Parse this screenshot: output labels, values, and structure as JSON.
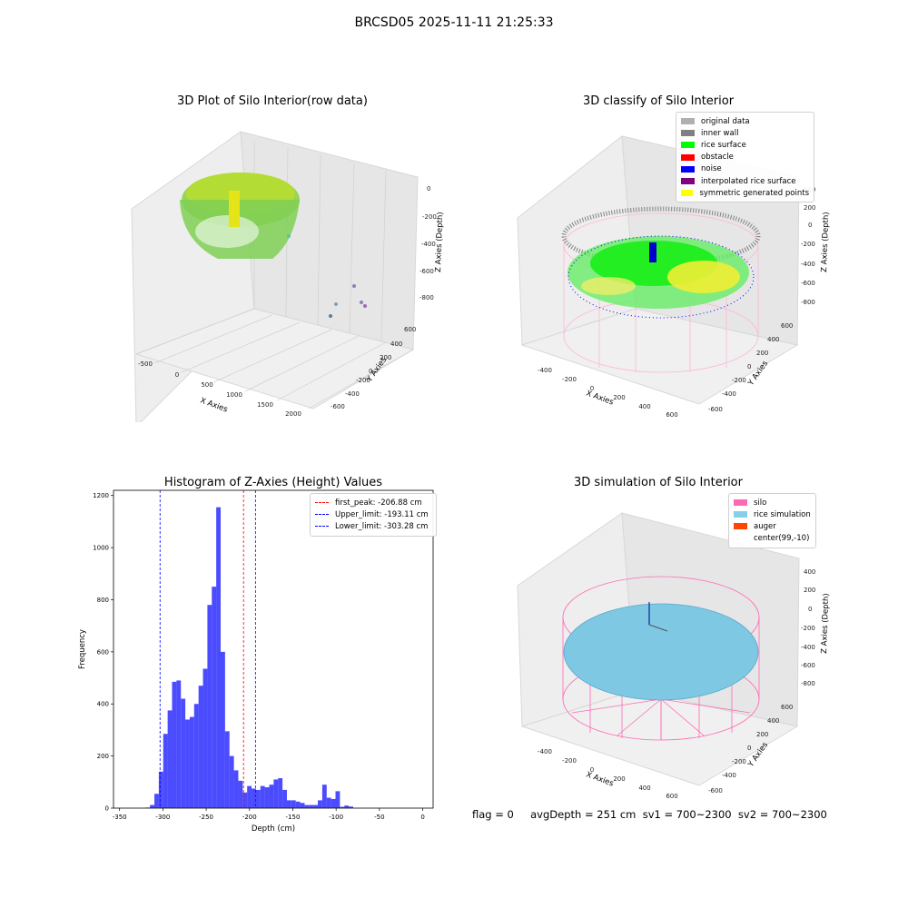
{
  "figure": {
    "suptitle": "BRCSD05 2025-11-11 21:25:33",
    "footer": "flag = 0     avgDepth = 251 cm  sv1 = 700~2300  sv2 = 700~2300"
  },
  "panels": [
    {
      "title": "3D Plot of Silo Interior(row data)",
      "xlabel": "X Axies",
      "ylabel": "Y Axies",
      "zlabel": "Z Axies (Depth)",
      "xticks": [
        "-500",
        "0",
        "500",
        "1000",
        "1500",
        "2000"
      ],
      "yticks": [
        "600",
        "400",
        "200",
        "0",
        "-200",
        "-400",
        "-600"
      ],
      "zticks": [
        "0",
        "-200",
        "-400",
        "-600",
        "-800"
      ]
    },
    {
      "title": "3D classify of Silo Interior",
      "xlabel": "X Axies",
      "ylabel": "Y Axies",
      "zlabel": "Z Axies (Depth)",
      "xticks": [
        "-400",
        "-200",
        "0",
        "200",
        "400",
        "600"
      ],
      "yticks": [
        "600",
        "400",
        "200",
        "0",
        "-200",
        "-400",
        "-600"
      ],
      "zticks": [
        "400",
        "200",
        "0",
        "-200",
        "-400",
        "-600",
        "-800"
      ],
      "legend": [
        {
          "label": "original data",
          "color": "#b0b0b0"
        },
        {
          "label": "inner wall",
          "color": "#808080"
        },
        {
          "label": "rice surface",
          "color": "#00ff00"
        },
        {
          "label": "obstacle",
          "color": "#ff0000"
        },
        {
          "label": "noise",
          "color": "#0000ff"
        },
        {
          "label": "interpolated rice surface",
          "color": "#800080"
        },
        {
          "label": "symmetric generated points",
          "color": "#ffff00"
        }
      ]
    },
    {
      "title": "3D simulation of Silo Interior",
      "xlabel": "X Axies",
      "ylabel": "Y Axies",
      "zlabel": "Z Axies (Depth)",
      "xticks": [
        "-400",
        "-200",
        "0",
        "200",
        "400",
        "600"
      ],
      "yticks": [
        "600",
        "400",
        "200",
        "0",
        "-200",
        "-400",
        "-600"
      ],
      "zticks": [
        "400",
        "200",
        "0",
        "-200",
        "-400",
        "-600",
        "-800"
      ],
      "legend": [
        {
          "label": "silo",
          "color": "#ff69b4"
        },
        {
          "label": "rice simulation",
          "color": "#87ceeb"
        },
        {
          "label": "auger",
          "color": "#ff4500"
        },
        {
          "label": "center(99,-10)",
          "color": "#ffffff"
        }
      ]
    }
  ],
  "chart_data": {
    "type": "bar",
    "title": "Histogram of Z-Axies (Height) Values",
    "xlabel": "Depth (cm)",
    "ylabel": "Frequency",
    "xlim": [
      -357,
      12
    ],
    "ylim": [
      0,
      1220
    ],
    "xticks": [
      -350,
      -300,
      -250,
      -200,
      -150,
      -100,
      -50,
      0
    ],
    "yticks": [
      0,
      200,
      400,
      600,
      800,
      1000,
      1200
    ],
    "bar_color": "#0000ff",
    "bin_width": 5.1,
    "bin_start": -320.0,
    "values": [
      2,
      12,
      55,
      140,
      285,
      375,
      485,
      490,
      420,
      340,
      350,
      400,
      470,
      535,
      780,
      850,
      1155,
      600,
      295,
      200,
      145,
      105,
      60,
      85,
      75,
      70,
      85,
      80,
      90,
      110,
      115,
      70,
      30,
      30,
      25,
      20,
      12,
      12,
      12,
      30,
      90,
      40,
      35,
      65,
      5,
      10,
      6
    ],
    "vlines": [
      {
        "x": -206.88,
        "color": "#ff0000",
        "label": "first_peak: -206.88 cm"
      },
      {
        "x": -193.11,
        "color": "#0000ff",
        "label": "Upper_limit: -193.11 cm"
      },
      {
        "x": -303.28,
        "color": "#0000ff",
        "label": "Lower_limit: -303.28 cm"
      }
    ],
    "legend_position": "upper right"
  }
}
